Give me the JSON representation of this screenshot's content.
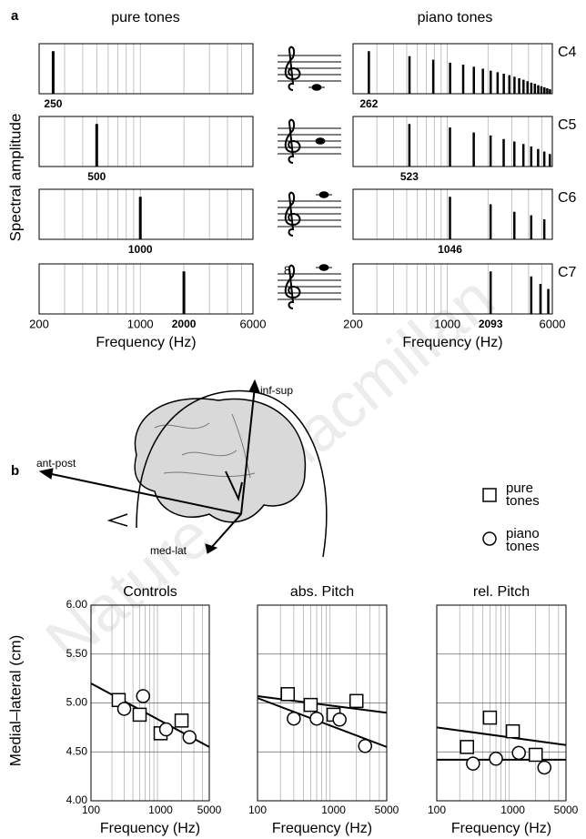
{
  "panel_a": {
    "label": "a",
    "columns": [
      "pure tones",
      "piano tones"
    ],
    "ylabel": "Spectral amplitude",
    "octave_mark": "8"
  },
  "panel_b": {
    "label": "b"
  },
  "brain": {
    "axes": [
      "inf-sup",
      "ant-post",
      "med-lat"
    ]
  },
  "watermark": "Nature © Macmillan",
  "chart_data": [
    {
      "type": "spectrum",
      "log_x": true,
      "xlim": [
        200,
        6000
      ],
      "ylim": [
        0,
        1
      ],
      "color": "#000000",
      "xgrid": [
        300,
        400,
        500,
        600,
        700,
        800,
        900,
        1000,
        2000,
        3000,
        4000,
        5000
      ],
      "x": [
        250
      ],
      "values": [
        0.85
      ],
      "fundamental": 250
    },
    {
      "type": "spectrum",
      "log_x": true,
      "xlim": [
        200,
        6000
      ],
      "ylim": [
        0,
        1
      ],
      "color": "#000000",
      "xgrid": [
        300,
        400,
        500,
        600,
        700,
        800,
        900,
        1000,
        2000,
        3000,
        4000,
        5000
      ],
      "x": [
        500
      ],
      "values": [
        0.85
      ],
      "fundamental": 500
    },
    {
      "type": "spectrum",
      "log_x": true,
      "xlim": [
        200,
        6000
      ],
      "ylim": [
        0,
        1
      ],
      "color": "#000000",
      "xgrid": [
        300,
        400,
        500,
        600,
        700,
        800,
        900,
        1000,
        2000,
        3000,
        4000,
        5000
      ],
      "x": [
        1000
      ],
      "values": [
        0.85
      ],
      "fundamental": 1000
    },
    {
      "type": "spectrum",
      "log_x": true,
      "xlim": [
        200,
        6000
      ],
      "ylim": [
        0,
        1
      ],
      "color": "#000000",
      "xgrid": [
        300,
        400,
        500,
        600,
        700,
        800,
        900,
        1000,
        2000,
        3000,
        4000,
        5000
      ],
      "x": [
        2000
      ],
      "values": [
        0.85
      ],
      "fundamental": 2000,
      "xticks": [
        200,
        1000,
        6000
      ],
      "xlabel": "Frequency (Hz)"
    },
    {
      "type": "spectrum",
      "log_x": true,
      "xlim": [
        200,
        6000
      ],
      "ylim": [
        0,
        1
      ],
      "color": "#000000",
      "xgrid": [
        300,
        400,
        500,
        600,
        700,
        800,
        900,
        1000,
        2000,
        3000,
        4000,
        5000
      ],
      "title": "C4",
      "fundamental": 262,
      "x": [
        262,
        524,
        786,
        1048,
        1310,
        1572,
        1834,
        2096,
        2358,
        2620,
        2882,
        3144,
        3406,
        3668,
        3930,
        4192,
        4454,
        4716,
        4978,
        5240,
        5502,
        5764
      ],
      "values": [
        0.85,
        0.75,
        0.68,
        0.62,
        0.58,
        0.54,
        0.5,
        0.46,
        0.43,
        0.4,
        0.37,
        0.34,
        0.31,
        0.28,
        0.25,
        0.22,
        0.2,
        0.17,
        0.15,
        0.13,
        0.11,
        0.09
      ]
    },
    {
      "type": "spectrum",
      "log_x": true,
      "xlim": [
        200,
        6000
      ],
      "ylim": [
        0,
        1
      ],
      "color": "#000000",
      "xgrid": [
        300,
        400,
        500,
        600,
        700,
        800,
        900,
        1000,
        2000,
        3000,
        4000,
        5000
      ],
      "title": "C5",
      "fundamental": 523,
      "x": [
        523,
        1046,
        1569,
        2092,
        2615,
        3138,
        3661,
        4184,
        4707,
        5230,
        5753
      ],
      "values": [
        0.85,
        0.78,
        0.68,
        0.62,
        0.55,
        0.5,
        0.45,
        0.4,
        0.35,
        0.3,
        0.25
      ]
    },
    {
      "type": "spectrum",
      "log_x": true,
      "xlim": [
        200,
        6000
      ],
      "ylim": [
        0,
        1
      ],
      "color": "#000000",
      "xgrid": [
        300,
        400,
        500,
        600,
        700,
        800,
        900,
        1000,
        2000,
        3000,
        4000,
        5000
      ],
      "title": "C6",
      "fundamental": 1046,
      "x": [
        1046,
        2092,
        3138,
        4184,
        5230
      ],
      "values": [
        0.85,
        0.7,
        0.55,
        0.48,
        0.4
      ]
    },
    {
      "type": "spectrum",
      "log_x": true,
      "xlim": [
        200,
        6000
      ],
      "ylim": [
        0,
        1
      ],
      "color": "#000000",
      "xgrid": [
        300,
        400,
        500,
        600,
        700,
        800,
        900,
        1000,
        2000,
        3000,
        4000,
        5000
      ],
      "title": "C7",
      "fundamental": 2093,
      "x": [
        2093,
        4186,
        4900,
        5600
      ],
      "values": [
        0.85,
        0.75,
        0.6,
        0.5
      ],
      "xticks": [
        200,
        1000,
        6000
      ],
      "xlabel": "Frequency (Hz)"
    },
    {
      "type": "scatter",
      "title": "Controls",
      "log_x": true,
      "xlim": [
        100,
        5000
      ],
      "ylim": [
        4,
        6
      ],
      "ylabel": "Medial–lateral (cm)",
      "xlabel": "Frequency (Hz)",
      "xticks": [
        100,
        1000,
        5000
      ],
      "xgrid": [
        200,
        300,
        400,
        500,
        600,
        700,
        800,
        900,
        2000,
        3000,
        4000
      ],
      "yticks": [
        {
          "value": 4,
          "label": "4.00"
        },
        {
          "value": 4.5,
          "label": "4.50"
        },
        {
          "value": 5,
          "label": "5.00"
        },
        {
          "value": 5.5,
          "label": "5.50"
        },
        {
          "value": 6,
          "label": "6.00"
        }
      ],
      "series": [
        {
          "name": "pure tones",
          "marker": "square",
          "x": [
            250,
            500,
            1000,
            2000
          ],
          "values": [
            5.03,
            4.88,
            4.69,
            4.82
          ]
        },
        {
          "name": "piano tones",
          "marker": "circle",
          "x": [
            300,
            560,
            1200,
            2600
          ],
          "values": [
            4.94,
            5.07,
            4.73,
            4.65
          ]
        }
      ],
      "fits": [
        {
          "x": [
            100,
            5000
          ],
          "values": [
            5.2,
            4.55
          ]
        }
      ]
    },
    {
      "type": "scatter",
      "title": "abs. Pitch",
      "log_x": true,
      "xlim": [
        100,
        5000
      ],
      "ylim": [
        4,
        6
      ],
      "xlabel": "Frequency (Hz)",
      "xticks": [
        100,
        1000,
        5000
      ],
      "xgrid": [
        200,
        300,
        400,
        500,
        600,
        700,
        800,
        900,
        2000,
        3000,
        4000
      ],
      "ygrid": [
        4.5,
        5,
        5.5
      ],
      "series": [
        {
          "name": "pure tones",
          "marker": "square",
          "x": [
            250,
            500,
            1000,
            2000
          ],
          "values": [
            5.09,
            4.98,
            4.88,
            5.02
          ]
        },
        {
          "name": "piano tones",
          "marker": "circle",
          "x": [
            300,
            600,
            1200,
            2600
          ],
          "values": [
            4.84,
            4.84,
            4.83,
            4.56
          ]
        }
      ],
      "fits": [
        {
          "x": [
            100,
            5000
          ],
          "values": [
            5.07,
            4.9
          ]
        },
        {
          "x": [
            100,
            5000
          ],
          "values": [
            5.05,
            4.55
          ]
        }
      ]
    },
    {
      "type": "scatter",
      "title": "rel. Pitch",
      "log_x": true,
      "xlim": [
        100,
        5000
      ],
      "ylim": [
        4,
        6
      ],
      "xlabel": "Frequency (Hz)",
      "xticks": [
        100,
        1000,
        5000
      ],
      "xgrid": [
        200,
        300,
        400,
        500,
        600,
        700,
        800,
        900,
        2000,
        3000,
        4000
      ],
      "ygrid": [
        4.5,
        5,
        5.5
      ],
      "series": [
        {
          "name": "pure tones",
          "marker": "square",
          "x": [
            250,
            500,
            1000,
            2000
          ],
          "values": [
            4.55,
            4.85,
            4.71,
            4.47
          ]
        },
        {
          "name": "piano tones",
          "marker": "circle",
          "x": [
            300,
            600,
            1200,
            2600
          ],
          "values": [
            4.38,
            4.43,
            4.49,
            4.34
          ]
        }
      ],
      "fits": [
        {
          "x": [
            100,
            5000
          ],
          "values": [
            4.75,
            4.57
          ]
        },
        {
          "x": [
            100,
            5000
          ],
          "values": [
            4.42,
            4.42
          ]
        }
      ]
    }
  ]
}
